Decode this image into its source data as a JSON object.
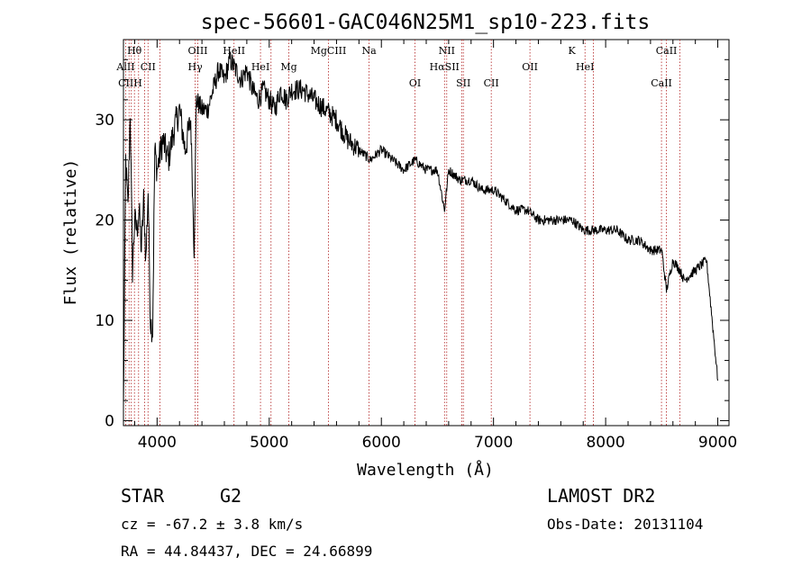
{
  "chart_data": {
    "type": "line",
    "title": "spec-56601-GAC046N25M1_sp10-223.fits",
    "xlabel": "Wavelength (Å)",
    "ylabel": "Flux (relative)",
    "xlim": [
      3700,
      9100
    ],
    "ylim": [
      -0.5,
      38
    ],
    "xticks": [
      4000,
      5000,
      6000,
      7000,
      8000,
      9000
    ],
    "yticks": [
      0,
      10,
      20,
      30
    ],
    "grid": false,
    "spectrum": {
      "x": [
        3700,
        3720,
        3740,
        3760,
        3780,
        3800,
        3820,
        3840,
        3860,
        3880,
        3900,
        3920,
        3940,
        3960,
        3980,
        4000,
        4050,
        4100,
        4150,
        4200,
        4250,
        4300,
        4330,
        4350,
        4400,
        4450,
        4500,
        4550,
        4600,
        4650,
        4700,
        4750,
        4800,
        4850,
        4900,
        4950,
        5000,
        5050,
        5100,
        5150,
        5200,
        5300,
        5400,
        5500,
        5600,
        5700,
        5800,
        5900,
        6000,
        6100,
        6200,
        6300,
        6400,
        6500,
        6563,
        6600,
        6700,
        6800,
        6900,
        7000,
        7100,
        7200,
        7300,
        7400,
        7500,
        7600,
        7700,
        7800,
        7900,
        8000,
        8100,
        8200,
        8300,
        8400,
        8500,
        8542,
        8600,
        8662,
        8700,
        8800,
        8900,
        9000
      ],
      "y": [
        1,
        26,
        21,
        31,
        15,
        20,
        19,
        21,
        17,
        22,
        16,
        23,
        10,
        9,
        27,
        25,
        28,
        26,
        29,
        31,
        27,
        30,
        17,
        32,
        31,
        31,
        33,
        35,
        34,
        36,
        35,
        34,
        35,
        33,
        32,
        33,
        32,
        31,
        33,
        32,
        33,
        33,
        32,
        31,
        30,
        28,
        27,
        26,
        27,
        26,
        25,
        26,
        25,
        25,
        21,
        25,
        24,
        24,
        23,
        23,
        22,
        21,
        21,
        20,
        20,
        20,
        20,
        19,
        19,
        19,
        19,
        18,
        18,
        17,
        17,
        13,
        16,
        15,
        14,
        15,
        16,
        4
      ]
    },
    "line_markers": {
      "top_row": [
        {
          "label": "Hθ",
          "x": 3798
        },
        {
          "label": "OIII",
          "x": 4363
        },
        {
          "label": "HeII",
          "x": 4686
        },
        {
          "label": "MgCIII",
          "x": 5528
        },
        {
          "label": "Na",
          "x": 5890
        },
        {
          "label": "NII",
          "x": 6583
        },
        {
          "label": "K",
          "x": 7699
        },
        {
          "label": "CaII",
          "x": 8542
        }
      ],
      "second_row": [
        {
          "label": "AlII",
          "x": 3720
        },
        {
          "label": "CII",
          "x": 3919
        },
        {
          "label": "Hγ",
          "x": 4340
        },
        {
          "label": "HeI",
          "x": 4922
        },
        {
          "label": "Mg",
          "x": 5175
        },
        {
          "label": "HαSII",
          "x": 6563
        },
        {
          "label": "OII",
          "x": 7325
        },
        {
          "label": "HeI",
          "x": 7816
        }
      ],
      "third_row": [
        {
          "label": "CIIH",
          "x": 3760
        },
        {
          "label": "OI",
          "x": 6300
        },
        {
          "label": "SII",
          "x": 6731
        },
        {
          "label": "CII",
          "x": 6980
        },
        {
          "label": "CaII",
          "x": 8498
        }
      ],
      "dotted_lines_x": [
        3720,
        3750,
        3770,
        3798,
        3835,
        3889,
        3919,
        4026,
        4340,
        4363,
        4686,
        4922,
        5016,
        5175,
        5528,
        5890,
        6300,
        6563,
        6583,
        6716,
        6731,
        6980,
        7325,
        7816,
        7890,
        8498,
        8542,
        8662
      ]
    },
    "line_color": "#b22222"
  },
  "info": {
    "object_class": "STAR",
    "subclass": "G2",
    "survey": "LAMOST DR2",
    "velocity": "cz = -67.2 ± 3.8 km/s",
    "obs_date": "Obs-Date: 20131104",
    "coords": "RA =  44.84437, DEC =  24.66899"
  }
}
